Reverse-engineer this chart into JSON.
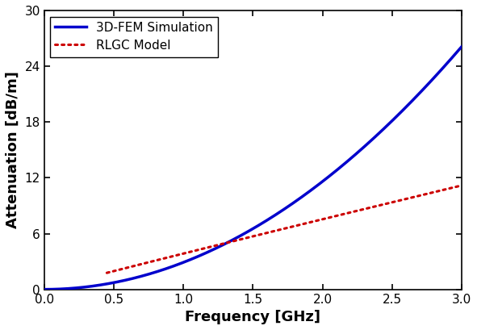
{
  "title": "",
  "xlabel": "Frequency [GHz]",
  "ylabel": "Attenuation [dB/m]",
  "xlim": [
    0,
    3.0
  ],
  "ylim": [
    0,
    30
  ],
  "xticks": [
    0.0,
    0.5,
    1.0,
    1.5,
    2.0,
    2.5,
    3.0
  ],
  "yticks": [
    0,
    6,
    12,
    18,
    24,
    30
  ],
  "fem_color": "#0000CC",
  "rlgc_color": "#CC0000",
  "fem_label": "3D-FEM Simulation",
  "rlgc_label": "RLGC Model",
  "fem_linewidth": 2.5,
  "rlgc_linewidth": 2.2,
  "fem_scale": 2.9,
  "fem_exponent": 2.0,
  "rlgc_scale": 3.85,
  "rlgc_exponent": 0.97,
  "rlgc_start": 0.45,
  "background_color": "#ffffff",
  "legend_fontsize": 11,
  "axis_fontsize": 13,
  "tick_fontsize": 11
}
